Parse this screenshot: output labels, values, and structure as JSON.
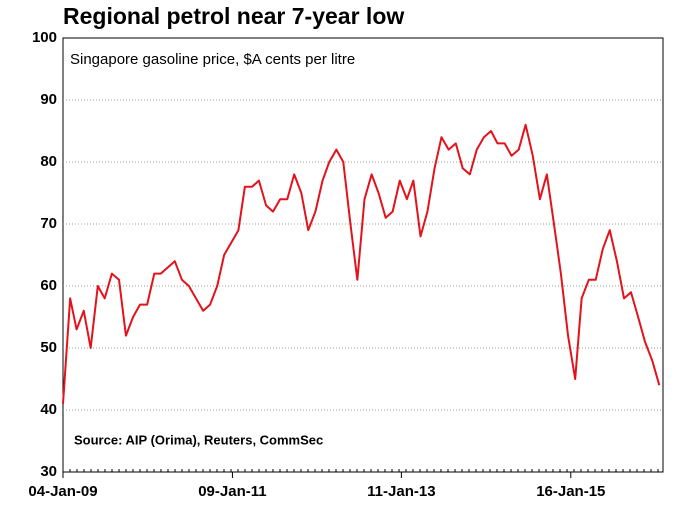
{
  "chart_data": {
    "type": "line",
    "title": "Regional petrol near 7-year low",
    "subtitle": "Singapore gasoline price, $A cents per litre",
    "annotation": "Source: AIP (Orima), Reuters, CommSec",
    "color": "#e3121b",
    "grid": true,
    "x": [
      "2009-01-04",
      "2009-02-04",
      "2009-03-04",
      "2009-04-04",
      "2009-05-04",
      "2009-06-04",
      "2009-07-04",
      "2009-08-04",
      "2009-09-04",
      "2009-10-04",
      "2009-11-04",
      "2009-12-04",
      "2010-01-04",
      "2010-02-04",
      "2010-03-04",
      "2010-04-04",
      "2010-05-04",
      "2010-06-04",
      "2010-07-04",
      "2010-08-04",
      "2010-09-04",
      "2010-10-04",
      "2010-11-04",
      "2010-12-04",
      "2011-01-04",
      "2011-02-04",
      "2011-03-04",
      "2011-04-04",
      "2011-05-04",
      "2011-06-04",
      "2011-07-04",
      "2011-08-04",
      "2011-09-04",
      "2011-10-04",
      "2011-11-04",
      "2011-12-04",
      "2012-01-04",
      "2012-02-04",
      "2012-03-04",
      "2012-04-04",
      "2012-05-04",
      "2012-06-04",
      "2012-07-04",
      "2012-08-04",
      "2012-09-04",
      "2012-10-04",
      "2012-11-04",
      "2012-12-04",
      "2013-01-04",
      "2013-02-04",
      "2013-03-04",
      "2013-04-04",
      "2013-05-04",
      "2013-06-04",
      "2013-07-04",
      "2013-08-04",
      "2013-09-04",
      "2013-10-04",
      "2013-11-04",
      "2013-12-04",
      "2014-01-04",
      "2014-02-04",
      "2014-03-04",
      "2014-04-04",
      "2014-05-04",
      "2014-06-04",
      "2014-07-04",
      "2014-08-04",
      "2014-09-04",
      "2014-10-04",
      "2014-11-04",
      "2014-12-04",
      "2015-01-04",
      "2015-02-04",
      "2015-03-04",
      "2015-04-04",
      "2015-05-04",
      "2015-06-04",
      "2015-07-04",
      "2015-08-04",
      "2015-09-04",
      "2015-10-04",
      "2015-11-04",
      "2015-12-04",
      "2016-01-04",
      "2016-02-04"
    ],
    "values": [
      41,
      58,
      53,
      56,
      50,
      60,
      58,
      62,
      61,
      52,
      55,
      57,
      57,
      62,
      62,
      63,
      64,
      61,
      60,
      58,
      56,
      57,
      60,
      65,
      67,
      69,
      76,
      76,
      77,
      73,
      72,
      74,
      74,
      78,
      75,
      69,
      72,
      77,
      80,
      82,
      80,
      70,
      61,
      74,
      78,
      75,
      71,
      72,
      77,
      74,
      77,
      68,
      72,
      79,
      84,
      82,
      83,
      79,
      78,
      82,
      84,
      85,
      83,
      83,
      81,
      82,
      86,
      81,
      74,
      78,
      70,
      62,
      52,
      45,
      58,
      61,
      61,
      66,
      69,
      64,
      58,
      59,
      55,
      51,
      48,
      44
    ],
    "xlim": [
      "2009-01-04",
      "2016-02-20"
    ],
    "xticks": [
      {
        "value": "2009-01-04",
        "label": "04-Jan-09"
      },
      {
        "value": "2011-01-09",
        "label": "09-Jan-11"
      },
      {
        "value": "2013-01-11",
        "label": "11-Jan-13"
      },
      {
        "value": "2015-01-16",
        "label": "16-Jan-15"
      }
    ],
    "ylim": [
      30,
      100
    ],
    "yticks": [
      30,
      40,
      50,
      60,
      70,
      80,
      90,
      100
    ]
  }
}
